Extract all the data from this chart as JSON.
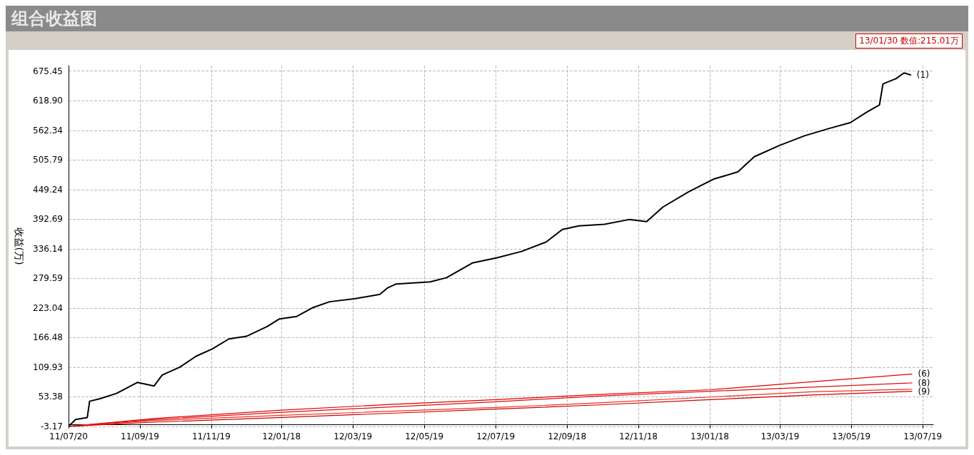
{
  "chart_data": {
    "type": "line",
    "title": "组合收益图",
    "ylabel": "收益(万)",
    "annotations": [
      "13/01/30 数值:215.01万"
    ],
    "xlim": [
      "2011-07-20",
      "2013-07-28"
    ],
    "ylim": [
      -3.17,
      686
    ],
    "xticks": [
      {
        "value": "2011-07-20",
        "label": "11/07/20"
      },
      {
        "value": "2011-09-19",
        "label": "11/09/19"
      },
      {
        "value": "2011-11-19",
        "label": "11/11/19"
      },
      {
        "value": "2012-01-18",
        "label": "12/01/18"
      },
      {
        "value": "2012-03-19",
        "label": "12/03/19"
      },
      {
        "value": "2012-05-19",
        "label": "12/05/19"
      },
      {
        "value": "2012-07-19",
        "label": "12/07/19"
      },
      {
        "value": "2012-09-18",
        "label": "12/09/18"
      },
      {
        "value": "2012-11-18",
        "label": "12/11/18"
      },
      {
        "value": "2013-01-18",
        "label": "13/01/18"
      },
      {
        "value": "2013-03-19",
        "label": "13/03/19"
      },
      {
        "value": "2013-05-19",
        "label": "13/05/19"
      },
      {
        "value": "2013-07-19",
        "label": "13/07/19"
      }
    ],
    "yticks": [
      -3.17,
      53.38,
      109.93,
      166.48,
      223.04,
      279.59,
      336.14,
      392.69,
      449.24,
      505.79,
      562.34,
      {
        "value": 618.9,
        "label": "618.90"
      },
      675.45
    ],
    "grid": true,
    "legend": false,
    "marker": "none",
    "line_style": "solid",
    "series": [
      {
        "name": "(1)",
        "color": "#000000",
        "x": [
          "2011-07-20",
          "2011-07-26",
          "2011-08-05",
          "2011-08-07",
          "2011-08-16",
          "2011-08-30",
          "2011-09-17",
          "2011-10-01",
          "2011-10-08",
          "2011-10-23",
          "2011-11-06",
          "2011-11-20",
          "2011-12-04",
          "2011-12-19",
          "2012-01-06",
          "2012-01-16",
          "2012-01-31",
          "2012-02-14",
          "2012-02-28",
          "2012-03-21",
          "2012-04-11",
          "2012-04-18",
          "2012-04-25",
          "2012-05-24",
          "2012-06-07",
          "2012-06-29",
          "2012-07-20",
          "2012-08-10",
          "2012-08-31",
          "2012-09-14",
          "2012-09-28",
          "2012-10-20",
          "2012-11-10",
          "2012-11-25",
          "2012-12-09",
          "2012-12-31",
          "2013-01-21",
          "2013-02-11",
          "2013-02-25",
          "2013-03-19",
          "2013-04-09",
          "2013-04-30",
          "2013-05-18",
          "2013-06-01",
          "2013-06-12",
          "2013-06-15",
          "2013-06-26",
          "2013-07-03",
          "2013-07-09"
        ],
        "values": [
          -3,
          10,
          14,
          45,
          50,
          60,
          81,
          74,
          95,
          110,
          131,
          145,
          164,
          169,
          188,
          202,
          207,
          224,
          235,
          241,
          249,
          262,
          269,
          273,
          281,
          309,
          319,
          331,
          349,
          373,
          380,
          383,
          392,
          388,
          416,
          445,
          469,
          483,
          512,
          534,
          552,
          566,
          577,
          597,
          611,
          651,
          661,
          672,
          668
        ]
      },
      {
        "name": "(6)",
        "color": "#e00000",
        "x": [
          "2011-07-20",
          "2011-10-01",
          "2012-01-18",
          "2012-04-20",
          "2012-07-19",
          "2012-10-15",
          "2013-01-18",
          "2013-04-15",
          "2013-07-10"
        ],
        "values": [
          -3,
          12,
          28,
          39,
          48,
          58,
          67,
          82,
          97
        ]
      },
      {
        "name": "(8)",
        "color": "#d81010",
        "x": [
          "2011-07-20",
          "2011-10-01",
          "2012-01-18",
          "2012-04-20",
          "2012-07-19",
          "2012-10-15",
          "2013-01-18",
          "2013-04-15",
          "2013-07-10"
        ],
        "values": [
          -3,
          10,
          24,
          34,
          44,
          55,
          64,
          72,
          80
        ]
      },
      {
        "color": "#f03020",
        "x": [
          "2011-07-20",
          "2011-10-01",
          "2012-01-18",
          "2012-04-20",
          "2012-07-19",
          "2012-10-15",
          "2013-01-18",
          "2013-04-15",
          "2013-07-10"
        ],
        "values": [
          -3,
          8,
          18,
          26,
          33,
          42,
          53,
          63,
          68
        ]
      },
      {
        "name": "(9)",
        "color": "#c80000",
        "x": [
          "2011-07-20",
          "2011-10-01",
          "2012-01-18",
          "2012-04-20",
          "2012-07-19",
          "2012-10-15",
          "2013-01-18",
          "2013-04-15",
          "2013-07-10"
        ],
        "values": [
          -3,
          5,
          14,
          22,
          30,
          38,
          48,
          57,
          64
        ]
      }
    ]
  }
}
